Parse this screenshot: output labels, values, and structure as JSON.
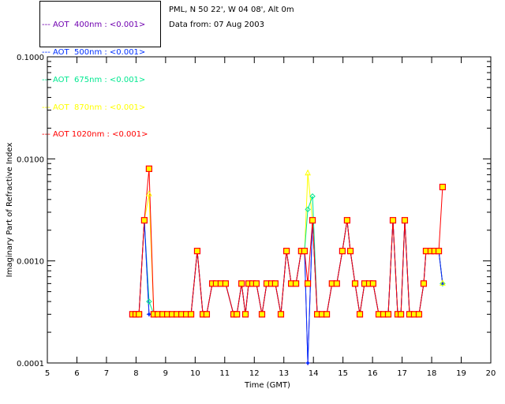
{
  "info": {
    "site": "PML, N 50 22', W 04 08', Alt 0m",
    "date": "Data from: 07 Aug 2003"
  },
  "chart_data": {
    "type": "line",
    "title": "",
    "xlabel": "Time (GMT)",
    "ylabel": "Imaginary Part of Refractive Index",
    "xlim": [
      5,
      20
    ],
    "ylim": [
      0.0001,
      0.1
    ],
    "yscale": "log",
    "x_ticks": [
      "5",
      "6",
      "7",
      "8",
      "9",
      "10",
      "11",
      "12",
      "13",
      "14",
      "15",
      "16",
      "17",
      "18",
      "19",
      "20"
    ],
    "y_ticks": [
      "0.0001",
      "0.0010",
      "0.0100",
      "0.1000"
    ],
    "legend_position": "top-left outside",
    "x": [
      7.88,
      7.99,
      8.1,
      8.28,
      8.44,
      8.6,
      8.74,
      8.9,
      9.06,
      9.22,
      9.38,
      9.54,
      9.7,
      9.86,
      10.07,
      10.26,
      10.39,
      10.58,
      10.71,
      10.87,
      11.03,
      11.3,
      11.41,
      11.57,
      11.7,
      11.81,
      11.94,
      12.07,
      12.26,
      12.42,
      12.58,
      12.71,
      12.9,
      13.09,
      13.25,
      13.41,
      13.59,
      13.7,
      13.81,
      13.97,
      14.13,
      14.29,
      14.45,
      14.63,
      14.79,
      14.98,
      15.14,
      15.25,
      15.41,
      15.57,
      15.73,
      15.89,
      16.02,
      16.21,
      16.37,
      16.53,
      16.69,
      16.85,
      16.96,
      17.09,
      17.25,
      17.41,
      17.57,
      17.73,
      17.81,
      17.97,
      18.1,
      18.24,
      18.37
    ],
    "series": [
      {
        "name": "AOT  400nm : <0.001>",
        "color": "#7000b0",
        "values": [
          0.0003,
          0.0003,
          0.0003,
          0.0025,
          0.0003,
          0.0003,
          0.0003,
          0.0003,
          0.0003,
          0.0003,
          0.0003,
          0.0003,
          0.0003,
          0.0003,
          0.00125,
          0.0003,
          0.0003,
          0.0006,
          0.0006,
          0.0006,
          0.0006,
          0.0003,
          0.0003,
          0.0006,
          0.0003,
          0.0006,
          0.0006,
          0.0006,
          0.0003,
          0.0006,
          0.0006,
          0.0006,
          0.0003,
          0.00125,
          0.0006,
          0.0006,
          0.00125,
          0.00125,
          0.0001,
          0.0025,
          0.0003,
          0.0003,
          0.0003,
          0.0006,
          0.0006,
          0.00125,
          0.0025,
          0.00125,
          0.0006,
          0.0003,
          0.0006,
          0.0006,
          0.0006,
          0.0003,
          0.0003,
          0.0003,
          0.0025,
          0.0003,
          0.0003,
          0.0025,
          0.0003,
          0.0003,
          0.0003,
          0.0006,
          0.00125,
          0.00125,
          0.00125,
          0.00125,
          0.0006
        ]
      },
      {
        "name": "AOT  500nm : <0.001>",
        "color": "#0030ff",
        "values": [
          0.0003,
          0.0003,
          0.0003,
          0.0025,
          0.0003,
          0.0003,
          0.0003,
          0.0003,
          0.0003,
          0.0003,
          0.0003,
          0.0003,
          0.0003,
          0.0003,
          0.00125,
          0.0003,
          0.0003,
          0.0006,
          0.0006,
          0.0006,
          0.0006,
          0.0003,
          0.0003,
          0.0006,
          0.0003,
          0.0006,
          0.0006,
          0.0006,
          0.0003,
          0.0006,
          0.0006,
          0.0006,
          0.0003,
          0.00125,
          0.0006,
          0.0006,
          0.00125,
          0.00125,
          0.0001,
          0.0025,
          0.0003,
          0.0003,
          0.0003,
          0.0006,
          0.0006,
          0.00125,
          0.0025,
          0.00125,
          0.0006,
          0.0003,
          0.0006,
          0.0006,
          0.0006,
          0.0003,
          0.0003,
          0.0003,
          0.0025,
          0.0003,
          0.0003,
          0.0025,
          0.0003,
          0.0003,
          0.0003,
          0.0006,
          0.00125,
          0.00125,
          0.00125,
          0.00125,
          0.0006
        ]
      },
      {
        "name": "AOT  675nm : <0.001>",
        "color": "#00e890",
        "values": [
          0.0003,
          0.0003,
          0.0003,
          0.0025,
          0.0004,
          0.0003,
          0.0003,
          0.0003,
          0.0003,
          0.0003,
          0.0003,
          0.0003,
          0.0003,
          0.0003,
          0.00125,
          0.0003,
          0.0003,
          0.0006,
          0.0006,
          0.0006,
          0.0006,
          0.0003,
          0.0003,
          0.0006,
          0.0003,
          0.0006,
          0.0006,
          0.0006,
          0.0003,
          0.0006,
          0.0006,
          0.0006,
          0.0003,
          0.00125,
          0.0006,
          0.0006,
          0.00125,
          0.00125,
          0.0032,
          0.0043,
          0.0003,
          0.0003,
          0.0003,
          0.0006,
          0.0006,
          0.00125,
          0.0025,
          0.00125,
          0.0006,
          0.0003,
          0.0006,
          0.0006,
          0.0006,
          0.0003,
          0.0003,
          0.0003,
          0.0025,
          0.0003,
          0.0003,
          0.0025,
          0.0003,
          0.0003,
          0.0003,
          0.0006,
          0.00125,
          0.00125,
          0.00125,
          0.00125,
          0.0006
        ]
      },
      {
        "name": "AOT  870nm : <0.001>",
        "color": "#ffff00",
        "values": [
          0.0003,
          0.0003,
          0.0003,
          0.0025,
          0.0045,
          0.0003,
          0.0003,
          0.0003,
          0.0003,
          0.0003,
          0.0003,
          0.0003,
          0.0003,
          0.0003,
          0.00125,
          0.0003,
          0.0003,
          0.0006,
          0.0006,
          0.0006,
          0.0006,
          0.0003,
          0.0003,
          0.0006,
          0.0003,
          0.0006,
          0.0006,
          0.0006,
          0.0003,
          0.0006,
          0.0006,
          0.0006,
          0.0003,
          0.00125,
          0.0006,
          0.0006,
          0.00125,
          0.00125,
          0.0072,
          0.0025,
          0.0003,
          0.0003,
          0.0003,
          0.0006,
          0.0006,
          0.00125,
          0.0025,
          0.00125,
          0.0006,
          0.0003,
          0.0006,
          0.0006,
          0.0006,
          0.0003,
          0.0003,
          0.0003,
          0.0025,
          0.0003,
          0.0003,
          0.0025,
          0.0003,
          0.0003,
          0.0003,
          0.0006,
          0.00125,
          0.00125,
          0.00125,
          0.00125,
          0.0006
        ]
      },
      {
        "name": "AOT 1020nm : <0.001>",
        "color": "#ff0000",
        "values": [
          0.0003,
          0.0003,
          0.0003,
          0.0025,
          0.008,
          0.0003,
          0.0003,
          0.0003,
          0.0003,
          0.0003,
          0.0003,
          0.0003,
          0.0003,
          0.0003,
          0.00125,
          0.0003,
          0.0003,
          0.0006,
          0.0006,
          0.0006,
          0.0006,
          0.0003,
          0.0003,
          0.0006,
          0.0003,
          0.0006,
          0.0006,
          0.0006,
          0.0003,
          0.0006,
          0.0006,
          0.0006,
          0.0003,
          0.00125,
          0.0006,
          0.0006,
          0.00125,
          0.00125,
          0.0006,
          0.0025,
          0.0003,
          0.0003,
          0.0003,
          0.0006,
          0.0006,
          0.00125,
          0.0025,
          0.00125,
          0.0006,
          0.0003,
          0.0006,
          0.0006,
          0.0006,
          0.0003,
          0.0003,
          0.0003,
          0.0025,
          0.0003,
          0.0003,
          0.0025,
          0.0003,
          0.0003,
          0.0003,
          0.0006,
          0.00125,
          0.00125,
          0.00125,
          0.00125,
          0.0053
        ]
      }
    ]
  }
}
